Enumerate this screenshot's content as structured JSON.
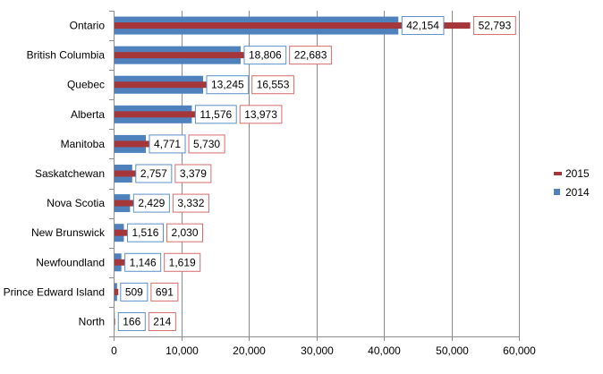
{
  "chart_data": {
    "type": "bar",
    "orientation": "horizontal",
    "categories": [
      "Ontario",
      "British Columbia",
      "Quebec",
      "Alberta",
      "Manitoba",
      "Saskatchewan",
      "Nova Scotia",
      "New Brunswick",
      "Newfoundland",
      "Prince Edward Island",
      "North"
    ],
    "series": [
      {
        "name": "2014",
        "color": "#4F81BD",
        "values": [
          42154,
          18806,
          13245,
          11576,
          4771,
          2757,
          2429,
          1516,
          1146,
          509,
          166
        ],
        "labels": [
          "42,154",
          "18,806",
          "13,245",
          "11,576",
          "4,771",
          "2,757",
          "2,429",
          "1,516",
          "1,146",
          "509",
          "166"
        ]
      },
      {
        "name": "2015",
        "color": "#A5373A",
        "values": [
          52793,
          22683,
          16553,
          13973,
          5730,
          3379,
          3332,
          2030,
          1619,
          691,
          214
        ],
        "labels": [
          "52,793",
          "22,683",
          "16,553",
          "13,973",
          "5,730",
          "3,379",
          "3,332",
          "2,030",
          "1,619",
          "691",
          "214"
        ]
      }
    ],
    "xlim": [
      0,
      60000
    ],
    "x_ticks": [
      0,
      10000,
      20000,
      30000,
      40000,
      50000,
      60000
    ],
    "x_tick_labels": [
      "0",
      "10,000",
      "20,000",
      "30,000",
      "40,000",
      "50,000",
      "60,000"
    ],
    "grid": "vertical",
    "legend": {
      "position": "right",
      "entries": [
        "2015",
        "2014"
      ]
    },
    "title": "",
    "xlabel": "",
    "ylabel": ""
  }
}
